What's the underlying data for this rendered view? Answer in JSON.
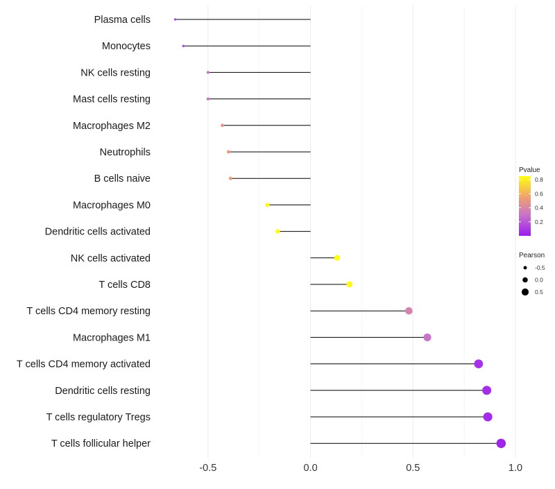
{
  "chart_data": {
    "type": "lollipop",
    "title": "",
    "xlabel": "",
    "ylabel": "",
    "xlim": [
      -0.75,
      1.0
    ],
    "grid": true,
    "x_ticks": [
      {
        "value": -0.5,
        "label": "-0.5"
      },
      {
        "value": 0.0,
        "label": "0.0"
      },
      {
        "value": 0.5,
        "label": "0.5"
      },
      {
        "value": 1.0,
        "label": "1.0"
      }
    ],
    "x_minor_ticks": [
      -0.25,
      0.25,
      0.75
    ],
    "points": [
      {
        "category": "Plasma cells",
        "pearson": -0.66,
        "pvalue": 0.1
      },
      {
        "category": "Monocytes",
        "pearson": -0.62,
        "pvalue": 0.14
      },
      {
        "category": "NK cells resting",
        "pearson": -0.5,
        "pvalue": 0.3
      },
      {
        "category": "Mast cells resting",
        "pearson": -0.5,
        "pvalue": 0.31
      },
      {
        "category": "Macrophages M2",
        "pearson": -0.43,
        "pvalue": 0.48
      },
      {
        "category": "Neutrophils",
        "pearson": -0.4,
        "pvalue": 0.52
      },
      {
        "category": "B cells naive",
        "pearson": -0.39,
        "pvalue": 0.53
      },
      {
        "category": "Macrophages M0",
        "pearson": -0.21,
        "pvalue": 0.84
      },
      {
        "category": "Dendritic cells activated",
        "pearson": -0.16,
        "pvalue": 0.86
      },
      {
        "category": "NK cells activated",
        "pearson": 0.13,
        "pvalue": 0.88
      },
      {
        "category": "T cells CD8",
        "pearson": 0.19,
        "pvalue": 0.83
      },
      {
        "category": "T cells CD4 memory resting",
        "pearson": 0.48,
        "pvalue": 0.38
      },
      {
        "category": "Macrophages M1",
        "pearson": 0.57,
        "pvalue": 0.3
      },
      {
        "category": "T cells CD4 memory activated",
        "pearson": 0.82,
        "pvalue": 0.07
      },
      {
        "category": "Dendritic cells resting",
        "pearson": 0.86,
        "pvalue": 0.06
      },
      {
        "category": "T cells regulatory  Tregs",
        "pearson": 0.865,
        "pvalue": 0.05
      },
      {
        "category": "T cells follicular helper",
        "pearson": 0.93,
        "pvalue": 0.03
      }
    ],
    "legend_color": {
      "title": "Pvalue",
      "range": [
        0.0,
        0.85
      ],
      "ticks": [
        {
          "value": 0.8,
          "label": "0.8"
        },
        {
          "value": 0.6,
          "label": "0.6"
        },
        {
          "value": 0.4,
          "label": "0.4"
        },
        {
          "value": 0.2,
          "label": "0.2"
        }
      ],
      "stops": [
        {
          "value": 0.0,
          "color": "#9b1cf0"
        },
        {
          "value": 0.3,
          "color": "#c874c8"
        },
        {
          "value": 0.55,
          "color": "#f0a070"
        },
        {
          "value": 0.85,
          "color": "#ffff10"
        }
      ],
      "position": "right"
    },
    "legend_size": {
      "title": "Pearson",
      "entries": [
        {
          "value": -0.5,
          "label": "-0.5"
        },
        {
          "value": 0.0,
          "label": "0.0"
        },
        {
          "value": 0.5,
          "label": "0.5"
        }
      ],
      "position": "right"
    },
    "colors": {
      "stem": "#000000",
      "grid": "#ebebeb",
      "background": "#ffffff"
    }
  }
}
